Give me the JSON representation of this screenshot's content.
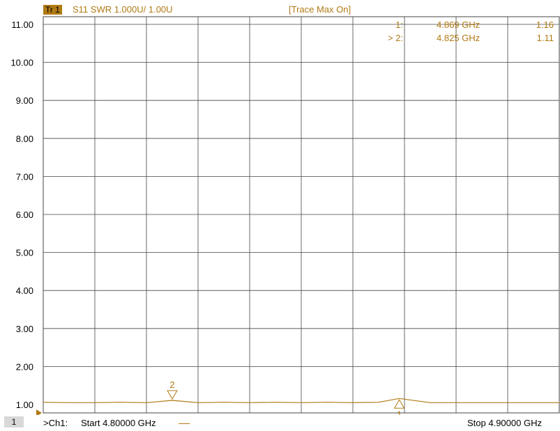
{
  "header": {
    "trace_badge": "Tr 1",
    "trace_desc": "S11 SWR 1.000U/  1.00U",
    "status": "[Trace Max On]"
  },
  "markers_table": [
    {
      "label": "1:",
      "freq": "4.869 GHz",
      "value": "1.16"
    },
    {
      "label": "> 2:",
      "freq": "4.825 GHz",
      "value": "1.11"
    }
  ],
  "footer": {
    "channel_box": "1",
    "channel_label": ">Ch1:",
    "start": "Start  4.80000 GHz",
    "stop": "Stop  4.90000 GHz"
  },
  "colors": {
    "trace": "#b07a14",
    "grid": "#444444",
    "marker": "#b07a14"
  },
  "chart_data": {
    "type": "line",
    "title": "",
    "xlabel": "",
    "ylabel": "",
    "xlim": [
      4.8,
      4.9
    ],
    "ylim": [
      1.0,
      11.0
    ],
    "y_ticks": [
      "11.00",
      "10.00",
      "9.00",
      "8.00",
      "7.00",
      "6.00",
      "5.00",
      "4.00",
      "3.00",
      "2.00",
      "1.00"
    ],
    "grid": true,
    "series": [
      {
        "x": [
          4.8,
          4.805,
          4.81,
          4.815,
          4.82,
          4.825,
          4.83,
          4.835,
          4.84,
          4.845,
          4.85,
          4.855,
          4.86,
          4.865,
          4.869,
          4.875,
          4.88,
          4.885,
          4.89,
          4.895,
          4.9
        ],
        "y": [
          1.06,
          1.05,
          1.05,
          1.06,
          1.05,
          1.11,
          1.05,
          1.06,
          1.05,
          1.06,
          1.05,
          1.06,
          1.05,
          1.06,
          1.16,
          1.05,
          1.05,
          1.05,
          1.05,
          1.05,
          1.05
        ]
      }
    ],
    "markers": [
      {
        "id": "1",
        "x": 4.869,
        "y": 1.16,
        "direction": "up"
      },
      {
        "id": "2",
        "x": 4.825,
        "y": 1.11,
        "direction": "down"
      }
    ]
  }
}
